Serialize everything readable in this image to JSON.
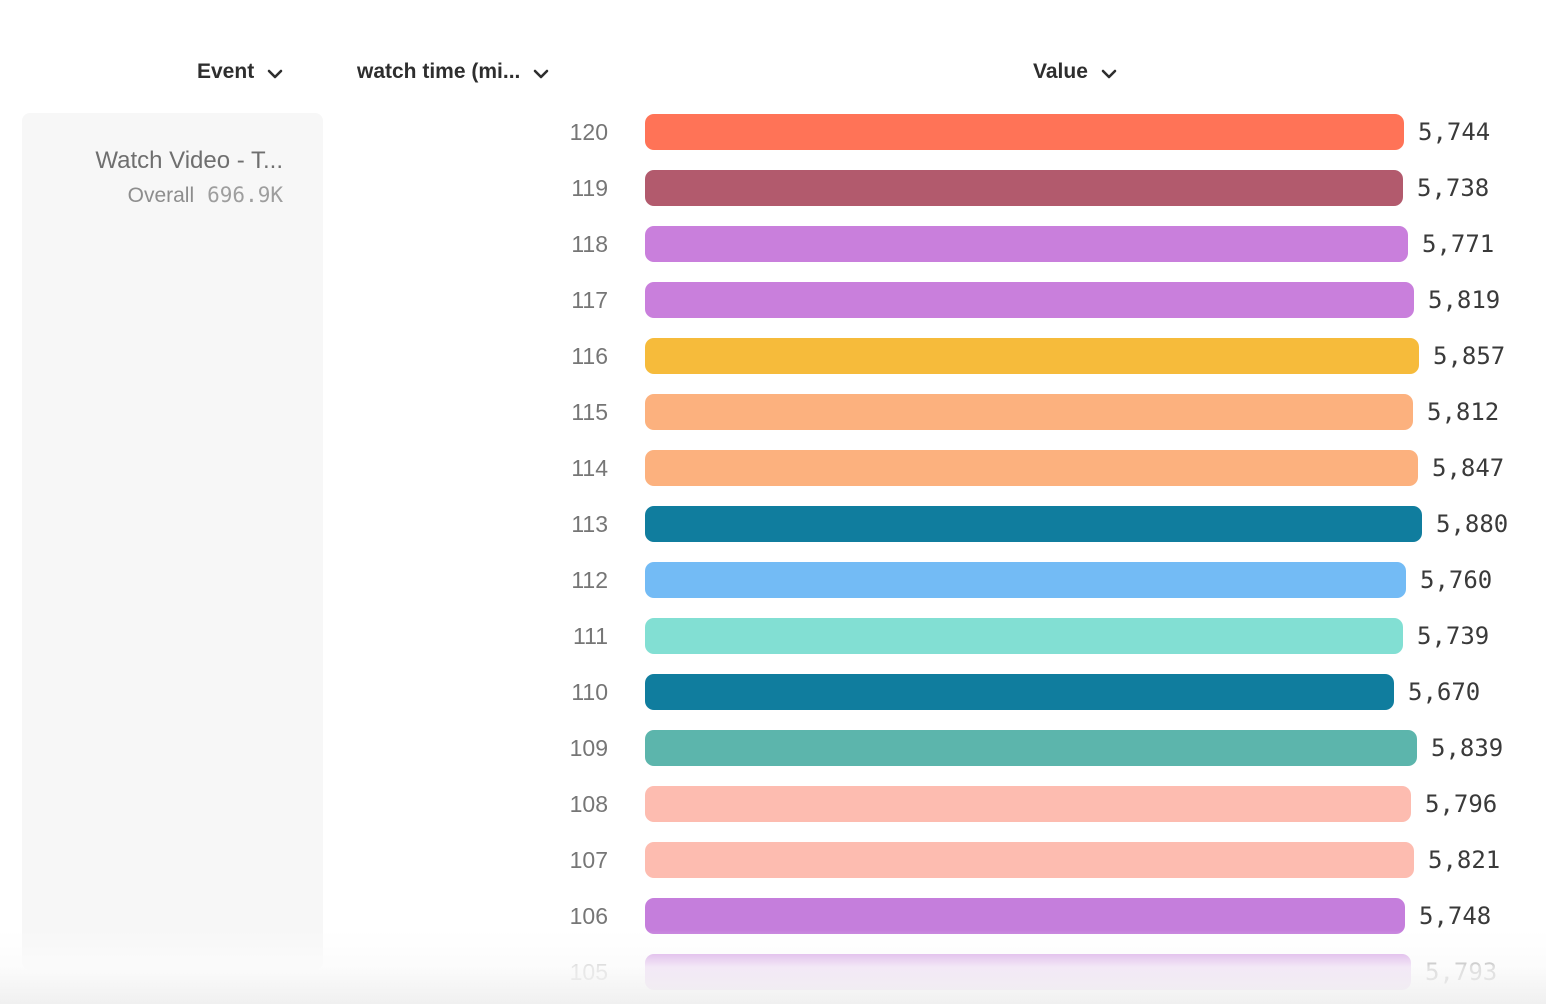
{
  "header": {
    "event_column_label": "Event",
    "watch_time_column_label": "watch time (mi...",
    "value_column_label": "Value"
  },
  "event_panel": {
    "event_name": "Watch Video - T...",
    "overall_label": "Overall",
    "overall_value": "696.9K"
  },
  "chart_data": {
    "type": "bar",
    "orientation": "horizontal",
    "title": "",
    "xlabel": "Value",
    "ylabel": "watch time (mi...",
    "xlim": [
      0,
      5880
    ],
    "grid": false,
    "categories": [
      120,
      119,
      118,
      117,
      116,
      115,
      114,
      113,
      112,
      111,
      110,
      109,
      108,
      107,
      106,
      105
    ],
    "values": [
      5744,
      5738,
      5771,
      5819,
      5857,
      5812,
      5847,
      5880,
      5760,
      5739,
      5670,
      5839,
      5796,
      5821,
      5748,
      5793
    ],
    "value_labels": [
      "5,744",
      "5,738",
      "5,771",
      "5,819",
      "5,857",
      "5,812",
      "5,847",
      "5,880",
      "5,760",
      "5,739",
      "5,670",
      "5,839",
      "5,796",
      "5,821",
      "5,748",
      "5,793"
    ],
    "bar_colors": [
      "#ff7357",
      "#b25a6d",
      "#c97fdc",
      "#c97fdc",
      "#f6bb3b",
      "#fcb17e",
      "#fcb17e",
      "#107d9e",
      "#73bbf5",
      "#82dfd3",
      "#107d9e",
      "#5cb5ac",
      "#fdbcb0",
      "#fdbcb0",
      "#c57edc",
      "#c57edc"
    ]
  },
  "colors": {
    "panel_background": "#f7f7f7",
    "header_text": "#2e2e2e",
    "row_label_text": "#767676",
    "value_text": "#3a3a3a",
    "event_name_text": "#6f6f6f"
  }
}
